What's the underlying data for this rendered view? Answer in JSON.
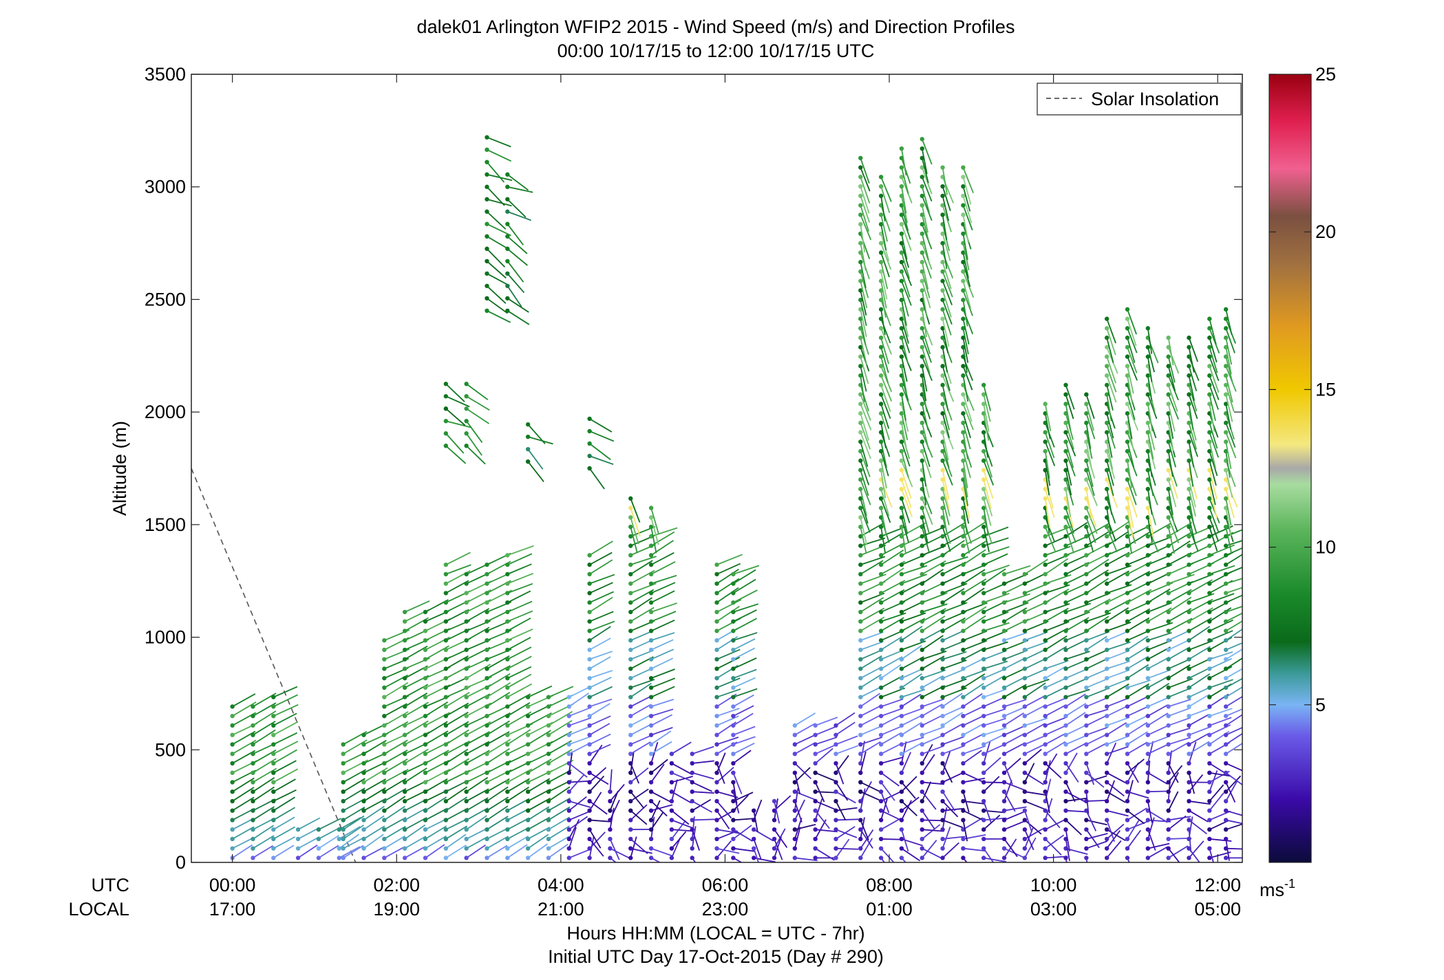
{
  "chart_data": {
    "type": "wind-barb-profile",
    "title": "dalek01 Arlington WFIP2 2015 - Wind Speed (m/s) and Direction Profiles",
    "subtitle": "00:00 10/17/15 to 12:00 10/17/15  UTC",
    "ylabel": "Altitude (m)",
    "ylim": [
      0,
      3500
    ],
    "y_ticks": [
      "0",
      "500",
      "1000",
      "1500",
      "2000",
      "2500",
      "3000",
      "3500"
    ],
    "x_range_hours_utc": [
      -0.5,
      12.3
    ],
    "x_row_label_utc": "UTC",
    "x_row_label_local": "LOCAL",
    "x_ticks_utc": [
      "00:00",
      "02:00",
      "04:00",
      "06:00",
      "08:00",
      "10:00",
      "12:00"
    ],
    "x_ticks_local": [
      "17:00",
      "19:00",
      "21:00",
      "23:00",
      "01:00",
      "03:00",
      "05:00"
    ],
    "x_tick_hours_utc": [
      0,
      2,
      4,
      6,
      8,
      10,
      12
    ],
    "xlabel": "Hours HH:MM  (LOCAL = UTC - 7hr)",
    "xlabel2": "Initial UTC Day 17-Oct-2015 (Day # 290)",
    "legend": {
      "entry": "Solar Insolation",
      "placement": "top-right"
    },
    "solar_insolation_line": {
      "x_hours_utc": [
        -0.5,
        1.5
      ],
      "y_m": [
        1750,
        0
      ]
    },
    "colorbar": {
      "range": [
        0,
        25
      ],
      "ticks": [
        "5",
        "10",
        "15",
        "20",
        "25"
      ],
      "tick_values": [
        5,
        10,
        15,
        20,
        25
      ],
      "unit_label": "ms",
      "unit_exponent": "-1"
    },
    "profiles": [
      {
        "t": 0.0,
        "top": 700,
        "pattern": "evening"
      },
      {
        "t": 0.25,
        "top": 720,
        "pattern": "evening"
      },
      {
        "t": 0.5,
        "top": 740,
        "pattern": "evening"
      },
      {
        "t": 0.8,
        "top": 180,
        "pattern": "evening"
      },
      {
        "t": 1.05,
        "top": 180,
        "pattern": "evening"
      },
      {
        "t": 1.3,
        "top": 180,
        "pattern": "evening"
      },
      {
        "t": 1.35,
        "top": 540,
        "pattern": "evening"
      },
      {
        "t": 1.6,
        "top": 570,
        "pattern": "evening"
      },
      {
        "t": 1.85,
        "top": 1020,
        "pattern": "evening"
      },
      {
        "t": 2.1,
        "top": 1130,
        "pattern": "evening"
      },
      {
        "t": 2.35,
        "top": 1130,
        "pattern": "evening"
      },
      {
        "t": 2.6,
        "top": 1330,
        "pattern": "evening"
      },
      {
        "t": 2.85,
        "top": 1320,
        "pattern": "evening"
      },
      {
        "t": 3.1,
        "top": 1330,
        "pattern": "evening"
      },
      {
        "t": 3.35,
        "top": 1370,
        "pattern": "evening"
      },
      {
        "t": 3.6,
        "top": 740,
        "pattern": "evening"
      },
      {
        "t": 3.85,
        "top": 740,
        "pattern": "evening"
      },
      {
        "t": 4.1,
        "top": 740,
        "pattern": "night"
      },
      {
        "t": 4.35,
        "top": 1370,
        "pattern": "night"
      },
      {
        "t": 4.6,
        "top": 330,
        "pattern": "night"
      },
      {
        "t": 4.85,
        "top": 1620,
        "pattern": "night"
      },
      {
        "t": 5.1,
        "top": 1600,
        "pattern": "night"
      },
      {
        "t": 5.35,
        "top": 520,
        "pattern": "night"
      },
      {
        "t": 5.6,
        "top": 520,
        "pattern": "night"
      },
      {
        "t": 5.9,
        "top": 1330,
        "pattern": "night"
      },
      {
        "t": 6.1,
        "top": 1310,
        "pattern": "night"
      },
      {
        "t": 6.35,
        "top": 260,
        "pattern": "night"
      },
      {
        "t": 6.6,
        "top": 290,
        "pattern": "night"
      },
      {
        "t": 6.85,
        "top": 620,
        "pattern": "night"
      },
      {
        "t": 7.1,
        "top": 630,
        "pattern": "night"
      },
      {
        "t": 7.35,
        "top": 640,
        "pattern": "night"
      },
      {
        "t": 7.65,
        "top": 3160,
        "pattern": "night"
      },
      {
        "t": 7.9,
        "top": 3050,
        "pattern": "night"
      },
      {
        "t": 8.15,
        "top": 3210,
        "pattern": "night"
      },
      {
        "t": 8.4,
        "top": 3220,
        "pattern": "night"
      },
      {
        "t": 8.65,
        "top": 3120,
        "pattern": "night"
      },
      {
        "t": 8.9,
        "top": 3110,
        "pattern": "night"
      },
      {
        "t": 9.15,
        "top": 2130,
        "pattern": "night"
      },
      {
        "t": 9.4,
        "top": 1290,
        "pattern": "night"
      },
      {
        "t": 9.65,
        "top": 1290,
        "pattern": "night"
      },
      {
        "t": 9.9,
        "top": 2050,
        "pattern": "night"
      },
      {
        "t": 10.15,
        "top": 2130,
        "pattern": "night"
      },
      {
        "t": 10.4,
        "top": 2080,
        "pattern": "night"
      },
      {
        "t": 10.65,
        "top": 2440,
        "pattern": "night"
      },
      {
        "t": 10.9,
        "top": 2490,
        "pattern": "night"
      },
      {
        "t": 11.15,
        "top": 2390,
        "pattern": "night"
      },
      {
        "t": 11.4,
        "top": 2340,
        "pattern": "night"
      },
      {
        "t": 11.65,
        "top": 2340,
        "pattern": "night"
      },
      {
        "t": 11.9,
        "top": 2440,
        "pattern": "night"
      },
      {
        "t": 12.1,
        "top": 2490,
        "pattern": "night"
      }
    ],
    "upper_clusters": [
      {
        "t": 2.6,
        "ymin": 1850,
        "ymax": 2150,
        "speed": 8.0
      },
      {
        "t": 2.85,
        "ymin": 1850,
        "ymax": 2150,
        "speed": 8.5
      },
      {
        "t": 3.1,
        "ymin": 2450,
        "ymax": 3270,
        "speed": 8.0
      },
      {
        "t": 3.35,
        "ymin": 2450,
        "ymax": 3080,
        "speed": 7.5
      },
      {
        "t": 3.6,
        "ymin": 1780,
        "ymax": 1960,
        "speed": 7.0
      },
      {
        "t": 4.35,
        "ymin": 1750,
        "ymax": 2010,
        "speed": 7.5
      }
    ]
  }
}
